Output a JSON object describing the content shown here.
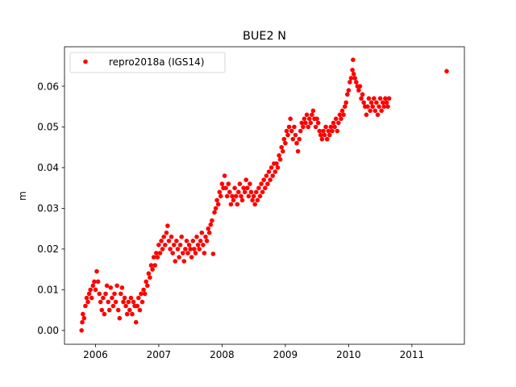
{
  "chart_data": {
    "type": "scatter",
    "title": "BUE2 N",
    "xlabel": "",
    "ylabel": "m",
    "xlim": [
      2005.51,
      2011.83
    ],
    "ylim": [
      -0.0034,
      0.0697
    ],
    "xticks": [
      2006,
      2007,
      2008,
      2009,
      2010,
      2011
    ],
    "xtick_labels": [
      "2006",
      "2007",
      "2008",
      "2009",
      "2010",
      "2011"
    ],
    "yticks": [
      0.0,
      0.01,
      0.02,
      0.03,
      0.04,
      0.05,
      0.06
    ],
    "ytick_labels": [
      "0.00",
      "0.01",
      "0.02",
      "0.03",
      "0.04",
      "0.05",
      "0.06"
    ],
    "grid": false,
    "legend_position": "top-left",
    "series": [
      {
        "name": "repro2018a (IGS14)",
        "color": "#ff0000",
        "marker": "dot",
        "points": [
          [
            2005.78,
            0.0
          ],
          [
            2005.79,
            0.002
          ],
          [
            2005.8,
            0.004
          ],
          [
            2005.82,
            0.003
          ],
          [
            2005.84,
            0.006
          ],
          [
            2005.86,
            0.008
          ],
          [
            2005.88,
            0.007
          ],
          [
            2005.9,
            0.009
          ],
          [
            2005.92,
            0.01
          ],
          [
            2005.94,
            0.008
          ],
          [
            2005.96,
            0.011
          ],
          [
            2005.98,
            0.012
          ],
          [
            2006.0,
            0.01
          ],
          [
            2006.02,
            0.0145
          ],
          [
            2006.04,
            0.012
          ],
          [
            2006.06,
            0.009
          ],
          [
            2006.08,
            0.007
          ],
          [
            2006.1,
            0.005
          ],
          [
            2006.12,
            0.008
          ],
          [
            2006.14,
            0.004
          ],
          [
            2006.16,
            0.009
          ],
          [
            2006.18,
            0.011
          ],
          [
            2006.2,
            0.007
          ],
          [
            2006.22,
            0.005
          ],
          [
            2006.24,
            0.0105
          ],
          [
            2006.26,
            0.008
          ],
          [
            2006.28,
            0.006
          ],
          [
            2006.3,
            0.009
          ],
          [
            2006.32,
            0.007
          ],
          [
            2006.34,
            0.011
          ],
          [
            2006.36,
            0.005
          ],
          [
            2006.38,
            0.003
          ],
          [
            2006.4,
            0.009
          ],
          [
            2006.42,
            0.0105
          ],
          [
            2006.44,
            0.007
          ],
          [
            2006.46,
            0.008
          ],
          [
            2006.48,
            0.006
          ],
          [
            2006.5,
            0.004
          ],
          [
            2006.52,
            0.007
          ],
          [
            2006.54,
            0.005
          ],
          [
            2006.56,
            0.008
          ],
          [
            2006.58,
            0.004
          ],
          [
            2006.6,
            0.007
          ],
          [
            2006.62,
            0.006
          ],
          [
            2006.64,
            0.002
          ],
          [
            2006.66,
            0.006
          ],
          [
            2006.68,
            0.008
          ],
          [
            2006.7,
            0.005
          ],
          [
            2006.72,
            0.009
          ],
          [
            2006.74,
            0.007
          ],
          [
            2006.76,
            0.01
          ],
          [
            2006.78,
            0.009
          ],
          [
            2006.8,
            0.012
          ],
          [
            2006.82,
            0.011
          ],
          [
            2006.84,
            0.014
          ],
          [
            2006.86,
            0.013
          ],
          [
            2006.88,
            0.016
          ],
          [
            2006.9,
            0.015
          ],
          [
            2006.92,
            0.018
          ],
          [
            2006.94,
            0.016
          ],
          [
            2006.96,
            0.019
          ],
          [
            2006.98,
            0.018
          ],
          [
            2007.0,
            0.021
          ],
          [
            2007.02,
            0.019
          ],
          [
            2007.04,
            0.022
          ],
          [
            2007.06,
            0.02
          ],
          [
            2007.08,
            0.023
          ],
          [
            2007.1,
            0.021
          ],
          [
            2007.12,
            0.024
          ],
          [
            2007.14,
            0.0257
          ],
          [
            2007.16,
            0.022
          ],
          [
            2007.18,
            0.02
          ],
          [
            2007.2,
            0.023
          ],
          [
            2007.22,
            0.019
          ],
          [
            2007.24,
            0.021
          ],
          [
            2007.26,
            0.017
          ],
          [
            2007.28,
            0.022
          ],
          [
            2007.3,
            0.02
          ],
          [
            2007.32,
            0.018
          ],
          [
            2007.34,
            0.021
          ],
          [
            2007.36,
            0.023
          ],
          [
            2007.38,
            0.019
          ],
          [
            2007.4,
            0.017
          ],
          [
            2007.42,
            0.02
          ],
          [
            2007.44,
            0.022
          ],
          [
            2007.46,
            0.019
          ],
          [
            2007.48,
            0.021
          ],
          [
            2007.5,
            0.02
          ],
          [
            2007.52,
            0.018
          ],
          [
            2007.54,
            0.022
          ],
          [
            2007.56,
            0.02
          ],
          [
            2007.58,
            0.019
          ],
          [
            2007.6,
            0.023
          ],
          [
            2007.62,
            0.021
          ],
          [
            2007.64,
            0.02
          ],
          [
            2007.66,
            0.022
          ],
          [
            2007.68,
            0.024
          ],
          [
            2007.7,
            0.021
          ],
          [
            2007.72,
            0.019
          ],
          [
            2007.74,
            0.023
          ],
          [
            2007.76,
            0.022
          ],
          [
            2007.78,
            0.025
          ],
          [
            2007.8,
            0.024
          ],
          [
            2007.82,
            0.026
          ],
          [
            2007.84,
            0.027
          ],
          [
            2007.86,
            0.0188
          ],
          [
            2007.88,
            0.029
          ],
          [
            2007.9,
            0.03
          ],
          [
            2007.92,
            0.032
          ],
          [
            2007.94,
            0.031
          ],
          [
            2007.96,
            0.034
          ],
          [
            2007.98,
            0.033
          ],
          [
            2008.0,
            0.036
          ],
          [
            2008.02,
            0.035
          ],
          [
            2008.04,
            0.038
          ],
          [
            2008.06,
            0.035
          ],
          [
            2008.08,
            0.033
          ],
          [
            2008.1,
            0.036
          ],
          [
            2008.12,
            0.034
          ],
          [
            2008.14,
            0.031
          ],
          [
            2008.16,
            0.033
          ],
          [
            2008.18,
            0.032
          ],
          [
            2008.2,
            0.035
          ],
          [
            2008.22,
            0.033
          ],
          [
            2008.24,
            0.031
          ],
          [
            2008.26,
            0.034
          ],
          [
            2008.28,
            0.036
          ],
          [
            2008.3,
            0.033
          ],
          [
            2008.32,
            0.032
          ],
          [
            2008.34,
            0.035
          ],
          [
            2008.36,
            0.034
          ],
          [
            2008.38,
            0.037
          ],
          [
            2008.4,
            0.035
          ],
          [
            2008.42,
            0.033
          ],
          [
            2008.44,
            0.036
          ],
          [
            2008.46,
            0.034
          ],
          [
            2008.48,
            0.032
          ],
          [
            2008.5,
            0.033
          ],
          [
            2008.52,
            0.031
          ],
          [
            2008.54,
            0.034
          ],
          [
            2008.56,
            0.032
          ],
          [
            2008.58,
            0.035
          ],
          [
            2008.6,
            0.033
          ],
          [
            2008.62,
            0.036
          ],
          [
            2008.64,
            0.034
          ],
          [
            2008.66,
            0.037
          ],
          [
            2008.68,
            0.035
          ],
          [
            2008.7,
            0.038
          ],
          [
            2008.72,
            0.036
          ],
          [
            2008.74,
            0.039
          ],
          [
            2008.76,
            0.037
          ],
          [
            2008.78,
            0.04
          ],
          [
            2008.8,
            0.038
          ],
          [
            2008.82,
            0.041
          ],
          [
            2008.84,
            0.039
          ],
          [
            2008.86,
            0.041
          ],
          [
            2008.88,
            0.04
          ],
          [
            2008.9,
            0.043
          ],
          [
            2008.92,
            0.042
          ],
          [
            2008.94,
            0.045
          ],
          [
            2008.96,
            0.044
          ],
          [
            2008.98,
            0.047
          ],
          [
            2009.0,
            0.046
          ],
          [
            2009.02,
            0.049
          ],
          [
            2009.04,
            0.048
          ],
          [
            2009.06,
            0.05
          ],
          [
            2009.08,
            0.052
          ],
          [
            2009.1,
            0.049
          ],
          [
            2009.12,
            0.047
          ],
          [
            2009.14,
            0.05
          ],
          [
            2009.16,
            0.048
          ],
          [
            2009.18,
            0.046
          ],
          [
            2009.2,
            0.044
          ],
          [
            2009.22,
            0.047
          ],
          [
            2009.24,
            0.049
          ],
          [
            2009.26,
            0.051
          ],
          [
            2009.28,
            0.05
          ],
          [
            2009.3,
            0.052
          ],
          [
            2009.32,
            0.051
          ],
          [
            2009.34,
            0.053
          ],
          [
            2009.36,
            0.05
          ],
          [
            2009.38,
            0.052
          ],
          [
            2009.4,
            0.051
          ],
          [
            2009.42,
            0.053
          ],
          [
            2009.44,
            0.054
          ],
          [
            2009.46,
            0.052
          ],
          [
            2009.48,
            0.05
          ],
          [
            2009.5,
            0.052
          ],
          [
            2009.52,
            0.051
          ],
          [
            2009.54,
            0.049
          ],
          [
            2009.56,
            0.048
          ],
          [
            2009.58,
            0.047
          ],
          [
            2009.6,
            0.049
          ],
          [
            2009.62,
            0.048
          ],
          [
            2009.64,
            0.05
          ],
          [
            2009.66,
            0.047
          ],
          [
            2009.68,
            0.049
          ],
          [
            2009.7,
            0.048
          ],
          [
            2009.72,
            0.05
          ],
          [
            2009.74,
            0.049
          ],
          [
            2009.76,
            0.051
          ],
          [
            2009.78,
            0.05
          ],
          [
            2009.8,
            0.052
          ],
          [
            2009.82,
            0.049
          ],
          [
            2009.84,
            0.051
          ],
          [
            2009.86,
            0.053
          ],
          [
            2009.88,
            0.052
          ],
          [
            2009.9,
            0.054
          ],
          [
            2009.92,
            0.053
          ],
          [
            2009.94,
            0.055
          ],
          [
            2009.96,
            0.056
          ],
          [
            2009.98,
            0.058
          ],
          [
            2010.0,
            0.059
          ],
          [
            2010.02,
            0.061
          ],
          [
            2010.04,
            0.062
          ],
          [
            2010.06,
            0.064
          ],
          [
            2010.07,
            0.0665
          ],
          [
            2010.08,
            0.063
          ],
          [
            2010.1,
            0.062
          ],
          [
            2010.12,
            0.061
          ],
          [
            2010.14,
            0.06
          ],
          [
            2010.16,
            0.059
          ],
          [
            2010.18,
            0.06
          ],
          [
            2010.2,
            0.057
          ],
          [
            2010.22,
            0.058
          ],
          [
            2010.24,
            0.056
          ],
          [
            2010.26,
            0.055
          ],
          [
            2010.28,
            0.053
          ],
          [
            2010.3,
            0.055
          ],
          [
            2010.32,
            0.057
          ],
          [
            2010.34,
            0.054
          ],
          [
            2010.36,
            0.056
          ],
          [
            2010.38,
            0.055
          ],
          [
            2010.4,
            0.057
          ],
          [
            2010.42,
            0.054
          ],
          [
            2010.44,
            0.056
          ],
          [
            2010.46,
            0.053
          ],
          [
            2010.48,
            0.055
          ],
          [
            2010.5,
            0.057
          ],
          [
            2010.52,
            0.054
          ],
          [
            2010.54,
            0.056
          ],
          [
            2010.56,
            0.055
          ],
          [
            2010.58,
            0.057
          ],
          [
            2010.6,
            0.056
          ],
          [
            2010.62,
            0.055
          ],
          [
            2010.64,
            0.057
          ],
          [
            2011.55,
            0.0637
          ]
        ]
      }
    ]
  }
}
